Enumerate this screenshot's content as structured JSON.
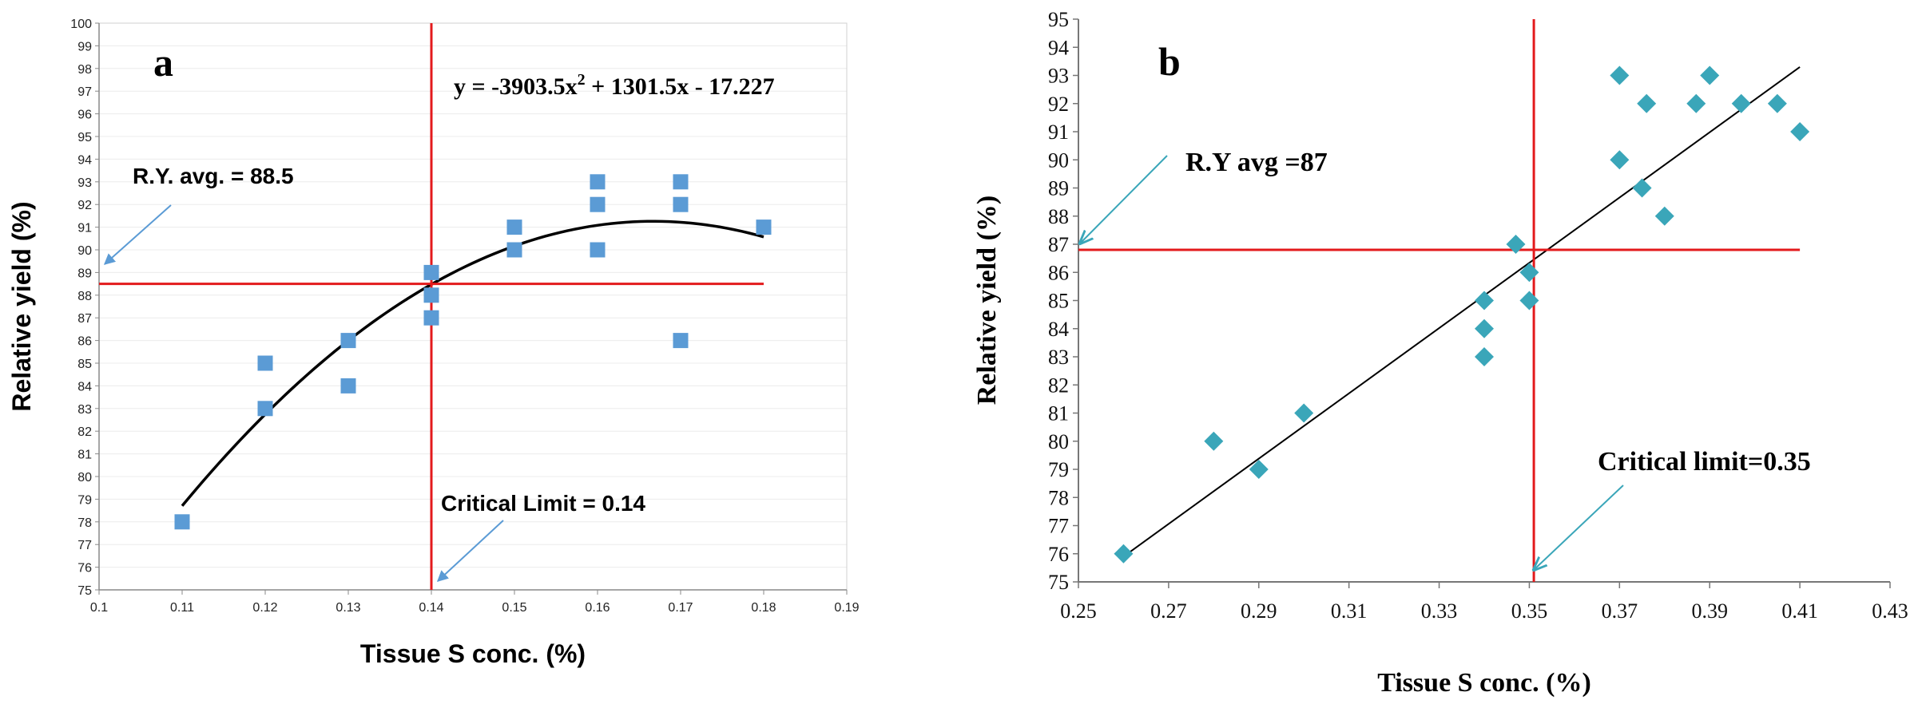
{
  "chart_data": [
    {
      "panel": "a",
      "type": "scatter",
      "title": "",
      "panel_label": "a",
      "xlabel": "Tissue S conc. (%)",
      "ylabel": "Relative yield (%)",
      "xlim": [
        0.1,
        0.19
      ],
      "ylim": [
        75,
        100
      ],
      "xticks": [
        "0.1",
        "0.11",
        "0.12",
        "0.13",
        "0.14",
        "0.15",
        "0.16",
        "0.17",
        "0.18",
        "0.19"
      ],
      "yticks": [
        "75",
        "76",
        "77",
        "78",
        "79",
        "80",
        "81",
        "82",
        "83",
        "84",
        "85",
        "86",
        "87",
        "88",
        "89",
        "90",
        "91",
        "92",
        "93",
        "94",
        "95",
        "96",
        "97",
        "98",
        "99",
        "100"
      ],
      "marker": "square",
      "colors": {
        "points": "#5b9bd5",
        "fit": "#000000",
        "ref": "#e31a1c",
        "arrow": "#5b9bd5"
      },
      "points": [
        {
          "x": 0.11,
          "y": 78
        },
        {
          "x": 0.12,
          "y": 83
        },
        {
          "x": 0.12,
          "y": 85
        },
        {
          "x": 0.13,
          "y": 84
        },
        {
          "x": 0.13,
          "y": 86
        },
        {
          "x": 0.14,
          "y": 87
        },
        {
          "x": 0.14,
          "y": 88
        },
        {
          "x": 0.14,
          "y": 89
        },
        {
          "x": 0.15,
          "y": 90
        },
        {
          "x": 0.15,
          "y": 91
        },
        {
          "x": 0.16,
          "y": 90
        },
        {
          "x": 0.16,
          "y": 92
        },
        {
          "x": 0.16,
          "y": 93
        },
        {
          "x": 0.17,
          "y": 86
        },
        {
          "x": 0.17,
          "y": 92
        },
        {
          "x": 0.17,
          "y": 93
        },
        {
          "x": 0.18,
          "y": 91
        }
      ],
      "fit": {
        "kind": "quadratic",
        "a": -3903.5,
        "b": 1301.5,
        "c": -17.227,
        "x_range": [
          0.11,
          0.18
        ]
      },
      "equation": {
        "lead": "y = -3903.5x",
        "sup": "2",
        "tail": " + 1301.5x - 17.227"
      },
      "hline": {
        "y": 88.5,
        "x_range": [
          0.1,
          0.18
        ]
      },
      "vline": {
        "x": 0.14,
        "y_range": [
          75,
          100
        ]
      },
      "annotations": {
        "ry": "R.Y. avg. = 88.5",
        "critical": "Critical Limit = 0.14"
      }
    },
    {
      "panel": "b",
      "type": "scatter",
      "title": "",
      "panel_label": "b",
      "xlabel": "Tissue S conc. (%)",
      "ylabel": "Relative yield (%)",
      "xlim": [
        0.25,
        0.43
      ],
      "ylim": [
        75,
        95
      ],
      "xticks": [
        "0.25",
        "0.27",
        "0.29",
        "0.31",
        "0.33",
        "0.35",
        "0.37",
        "0.39",
        "0.41",
        "0.43"
      ],
      "yticks": [
        "75",
        "76",
        "77",
        "78",
        "79",
        "80",
        "81",
        "82",
        "83",
        "84",
        "85",
        "86",
        "87",
        "88",
        "89",
        "90",
        "91",
        "92",
        "93",
        "94",
        "95"
      ],
      "marker": "diamond",
      "colors": {
        "points": "#3aa6b9",
        "fit": "#000000",
        "ref": "#e31a1c",
        "arrow": "#3aa6b9"
      },
      "points": [
        {
          "x": 0.26,
          "y": 76
        },
        {
          "x": 0.28,
          "y": 80
        },
        {
          "x": 0.29,
          "y": 79
        },
        {
          "x": 0.3,
          "y": 81
        },
        {
          "x": 0.34,
          "y": 83
        },
        {
          "x": 0.34,
          "y": 84
        },
        {
          "x": 0.34,
          "y": 85
        },
        {
          "x": 0.347,
          "y": 87
        },
        {
          "x": 0.35,
          "y": 85
        },
        {
          "x": 0.35,
          "y": 86
        },
        {
          "x": 0.37,
          "y": 90
        },
        {
          "x": 0.37,
          "y": 93
        },
        {
          "x": 0.375,
          "y": 89
        },
        {
          "x": 0.376,
          "y": 92
        },
        {
          "x": 0.38,
          "y": 88
        },
        {
          "x": 0.387,
          "y": 92
        },
        {
          "x": 0.39,
          "y": 93
        },
        {
          "x": 0.397,
          "y": 92
        },
        {
          "x": 0.405,
          "y": 92
        },
        {
          "x": 0.41,
          "y": 91
        }
      ],
      "fit": {
        "kind": "linear",
        "from": {
          "x": 0.26,
          "y": 75.9
        },
        "to": {
          "x": 0.41,
          "y": 93.3
        }
      },
      "hline": {
        "y": 86.8,
        "x_range": [
          0.25,
          0.41
        ]
      },
      "vline": {
        "x": 0.351,
        "y_range": [
          75,
          95
        ]
      },
      "annotations": {
        "ry": "R.Y avg =87",
        "critical": "Critical limit=0.35"
      }
    }
  ]
}
